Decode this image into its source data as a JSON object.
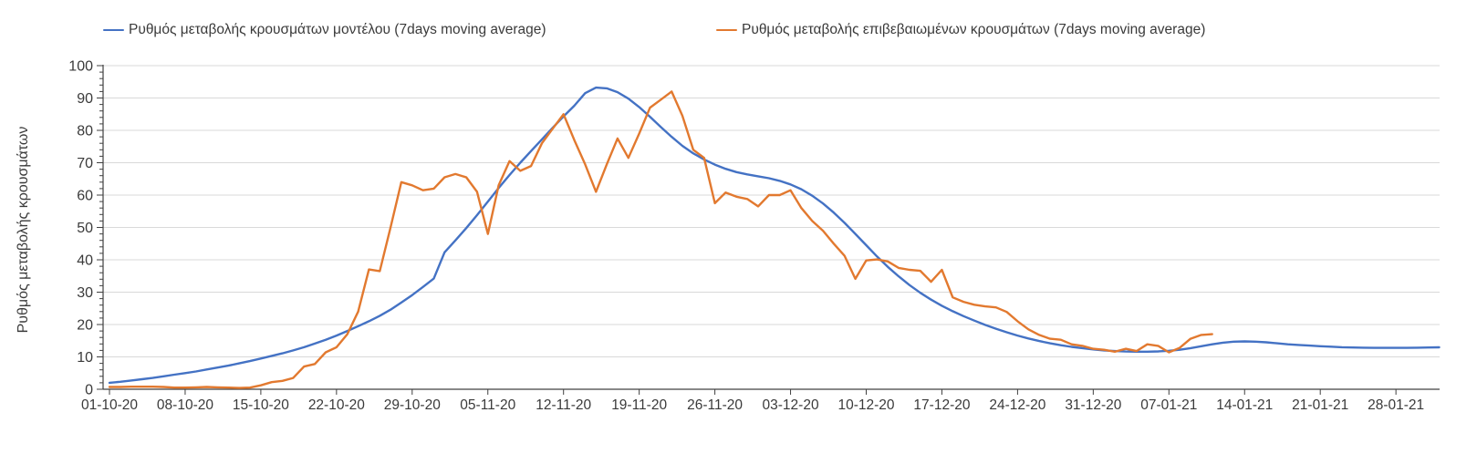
{
  "chart_data": {
    "type": "line",
    "title": "",
    "xlabel": "",
    "ylabel": "Ρυθμός μεταβολής κρουσμάτων",
    "ylim": [
      0,
      100
    ],
    "y_ticks": [
      0,
      10,
      20,
      30,
      40,
      50,
      60,
      70,
      80,
      90,
      100
    ],
    "y_tick_labels": [
      "0",
      "10",
      "20",
      "30",
      "40",
      "50",
      "60",
      "70",
      "80",
      "90",
      "100"
    ],
    "y_minor_tick_step": 2,
    "grid": "horizontal-only",
    "legend_position": "top",
    "x_ticks": [
      {
        "day": 0,
        "label": "01-10-20"
      },
      {
        "day": 7,
        "label": "08-10-20"
      },
      {
        "day": 14,
        "label": "15-10-20"
      },
      {
        "day": 21,
        "label": "22-10-20"
      },
      {
        "day": 28,
        "label": "29-10-20"
      },
      {
        "day": 35,
        "label": "05-11-20"
      },
      {
        "day": 42,
        "label": "12-11-20"
      },
      {
        "day": 49,
        "label": "19-11-20"
      },
      {
        "day": 56,
        "label": "26-11-20"
      },
      {
        "day": 63,
        "label": "03-12-20"
      },
      {
        "day": 70,
        "label": "10-12-20"
      },
      {
        "day": 77,
        "label": "17-12-20"
      },
      {
        "day": 84,
        "label": "24-12-20"
      },
      {
        "day": 91,
        "label": "31-12-20"
      },
      {
        "day": 98,
        "label": "07-01-21"
      },
      {
        "day": 105,
        "label": "14-01-21"
      },
      {
        "day": 112,
        "label": "21-01-21"
      },
      {
        "day": 119,
        "label": "28-01-21"
      }
    ],
    "colors": {
      "model_line": "#4472C4",
      "confirmed_line": "#E2792F",
      "gridline": "#D9D9D9",
      "axis": "#404040",
      "text": "#3A3A3A"
    },
    "series": [
      {
        "name": "Ρυθμός μεταβολής κρουσμάτων μοντέλου (7days moving average)",
        "color": "#4472C4",
        "start_day": 0,
        "step_days": 1,
        "values": [
          2,
          2.3,
          2.7,
          3.1,
          3.5,
          4,
          4.5,
          5,
          5.5,
          6.1,
          6.7,
          7.3,
          8,
          8.7,
          9.5,
          10.3,
          11.1,
          12,
          13,
          14.1,
          15.3,
          16.6,
          18,
          19.5,
          21,
          22.7,
          24.6,
          26.8,
          29.1,
          31.6,
          34.2,
          42.3,
          46,
          49.8,
          53.8,
          58,
          62.2,
          66.2,
          70,
          73.6,
          77.2,
          80.8,
          84.3,
          87.6,
          91.5,
          93.2,
          93,
          91.8,
          89.8,
          87.2,
          84.2,
          81,
          78,
          75.2,
          72.9,
          71,
          69.4,
          68.1,
          67.1,
          66.4,
          65.8,
          65.2,
          64.4,
          63.3,
          61.8,
          59.8,
          57.4,
          54.6,
          51.4,
          48,
          44.5,
          41,
          37.8,
          34.9,
          32.2,
          29.8,
          27.7,
          25.8,
          24.1,
          22.6,
          21.2,
          19.9,
          18.7,
          17.6,
          16.6,
          15.7,
          14.9,
          14.2,
          13.6,
          13.1,
          12.7,
          12.3,
          12,
          11.8,
          11.65,
          11.6,
          11.6,
          11.7,
          11.9,
          12.2,
          12.7,
          13.3,
          13.9,
          14.4,
          14.7,
          14.8,
          14.7,
          14.5,
          14.2,
          13.9,
          13.7,
          13.5,
          13.3,
          13.15,
          13,
          12.9,
          12.85,
          12.8,
          12.8,
          12.8,
          12.8,
          12.85,
          12.9,
          12.95
        ]
      },
      {
        "name": "Ρυθμός μεταβολής επιβεβαιωμένων κρουσμάτων (7days moving average)",
        "color": "#E2792F",
        "start_day": 0,
        "step_days": 1,
        "values": [
          0.7,
          0.7,
          0.8,
          0.8,
          0.8,
          0.7,
          0.5,
          0.5,
          0.6,
          0.7,
          0.6,
          0.5,
          0.4,
          0.5,
          1.2,
          2.2,
          2.6,
          3.5,
          7,
          7.8,
          11.4,
          13,
          17,
          24,
          37,
          36.5,
          50,
          64,
          63,
          61.5,
          62,
          65.5,
          66.5,
          65.5,
          61,
          48,
          63,
          70.5,
          67.5,
          69,
          76,
          80.5,
          85,
          77,
          69.5,
          61,
          69.5,
          77.5,
          71.5,
          79,
          87,
          89.5,
          92,
          84.5,
          74,
          71.5,
          57.5,
          60.8,
          59.5,
          58.8,
          56.5,
          60,
          60,
          61.5,
          56,
          52,
          49,
          45,
          41.2,
          34.1,
          39.8,
          40.1,
          39.5,
          37.5,
          36.9,
          36.6,
          33.2,
          36.9,
          28.4,
          27,
          26.1,
          25.6,
          25.3,
          23.9,
          21,
          18.5,
          16.8,
          15.6,
          15.3,
          13.9,
          13.4,
          12.5,
          12.2,
          11.6,
          12.5,
          11.8,
          13.9,
          13.4,
          11.4,
          12.8,
          15.6,
          16.8,
          17
        ]
      }
    ]
  }
}
